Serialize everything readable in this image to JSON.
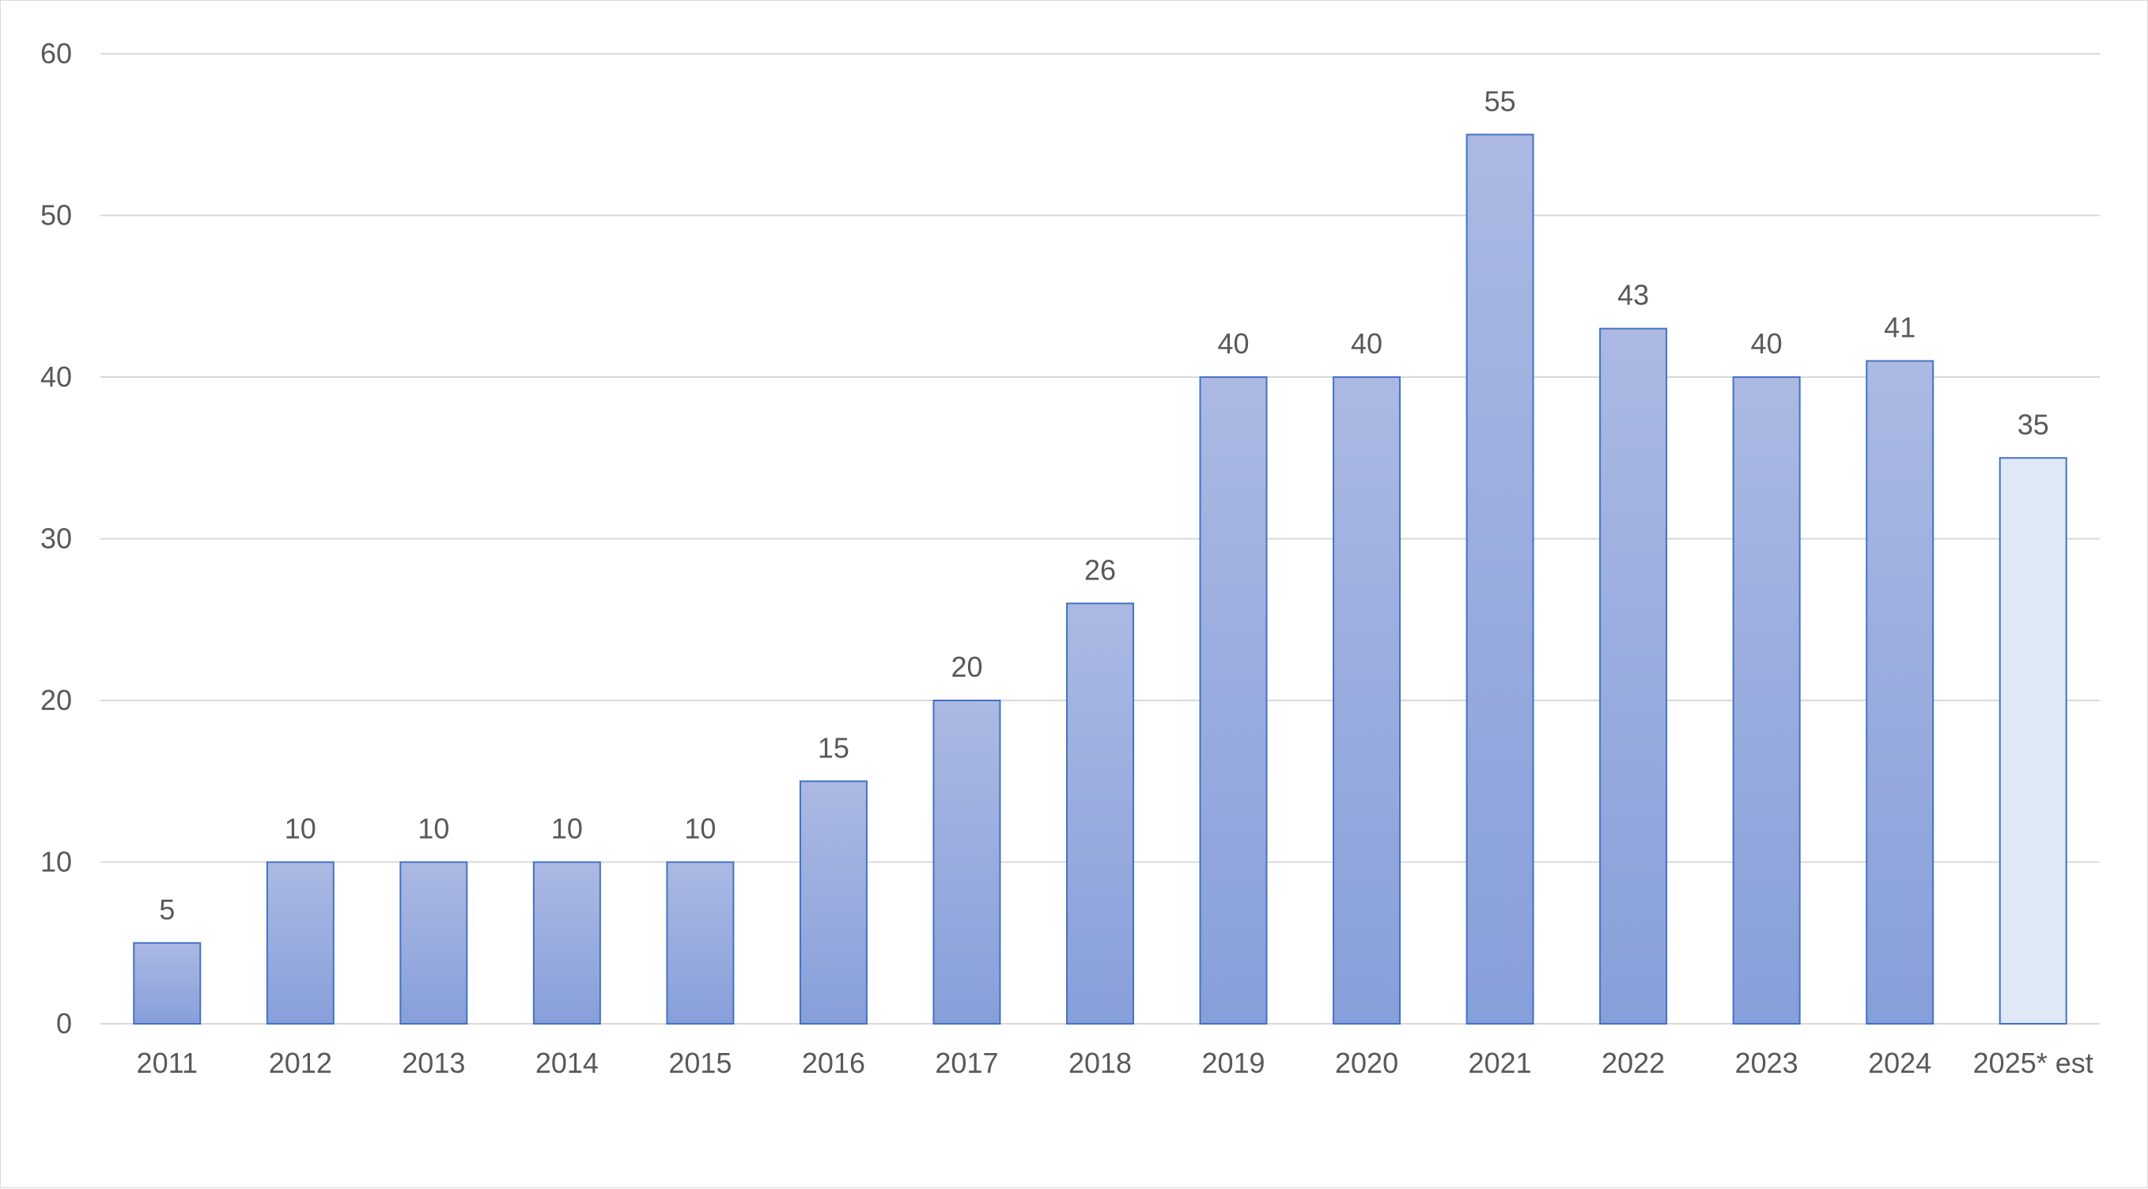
{
  "chart_data": {
    "type": "bar",
    "title": "",
    "xlabel": "",
    "ylabel": "",
    "ylim": [
      0,
      60
    ],
    "yticks": [
      0,
      10,
      20,
      30,
      40,
      50,
      60
    ],
    "grid": true,
    "legend": "none",
    "categories": [
      "2011",
      "2012",
      "2013",
      "2014",
      "2015",
      "2016",
      "2017",
      "2018",
      "2019",
      "2020",
      "2021",
      "2022",
      "2023",
      "2024",
      "2025* est"
    ],
    "values": [
      5,
      10,
      10,
      10,
      10,
      15,
      20,
      26,
      40,
      40,
      55,
      43,
      40,
      41,
      35
    ],
    "data_labels": [
      "5",
      "10",
      "10",
      "10",
      "10",
      "15",
      "20",
      "26",
      "40",
      "40",
      "55",
      "43",
      "40",
      "41",
      "35"
    ],
    "estimated_category": "2025* est",
    "colors": {
      "bar_fill_top": "#abb9e3",
      "bar_fill_bottom": "#879fda",
      "bar_stroke": "#4472c4",
      "estimate_fill": "#dee8f6",
      "grid": "#d9d9d9",
      "text": "#595959"
    }
  }
}
